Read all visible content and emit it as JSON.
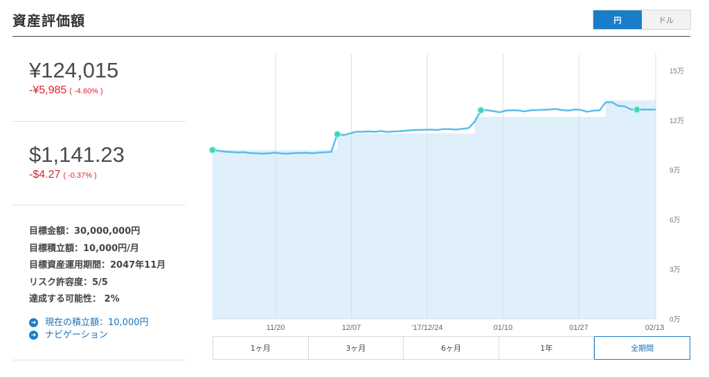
{
  "header": {
    "title": "資産評価額"
  },
  "currency_toggle": {
    "yen_label": "円",
    "dollar_label": "ドル",
    "active": "yen"
  },
  "summary": {
    "yen": {
      "value": "¥124,015",
      "change": "-¥5,985",
      "pct": "( -4.60% )"
    },
    "usd": {
      "value": "$1,141.23",
      "change": "-$4.27",
      "pct": "( -0.37% )"
    }
  },
  "goals": [
    "目標金額：30,000,000円",
    "目標積立額：10,000円/月",
    "目標資産運用期間：2047年11月",
    "リスク許容度：5/5",
    "達成する可能性： 2%"
  ],
  "links": {
    "current_contribution": "現在の積立額：10,000円",
    "navigation": "ナビゲーション",
    "arrow_icon": "arrow-right-circle-icon"
  },
  "range_tabs": [
    {
      "label": "1ヶ月",
      "active": false
    },
    {
      "label": "3ヶ月",
      "active": false
    },
    {
      "label": "6ヶ月",
      "active": false
    },
    {
      "label": "1年",
      "active": false
    },
    {
      "label": "全期間",
      "active": true
    }
  ],
  "colors": {
    "accent": "#1a7dc9",
    "line": "#5bbde8",
    "fill": "#dff0fb",
    "marker": "#3ed6b0",
    "negative": "#e0202c"
  },
  "chart_data": {
    "type": "area",
    "x_tick_labels": [
      "11/20",
      "12/07",
      "'17/12/24",
      "01/10",
      "01/27",
      "02/13"
    ],
    "y_tick_labels": [
      "0万",
      "3万",
      "6万",
      "9万",
      "12万",
      "15万"
    ],
    "ylim": [
      0,
      160000
    ],
    "grid": true,
    "series": [
      {
        "values": [
          102000,
          101500,
          101000,
          100800,
          100500,
          100700,
          100200,
          100000,
          99800,
          100000,
          100400,
          99900,
          99800,
          100100,
          100200,
          100300,
          100000,
          100400,
          100600,
          100900,
          111500,
          111000,
          112000,
          113000,
          113000,
          113200,
          113000,
          113400,
          112900,
          113200,
          113300,
          113700,
          114000,
          114100,
          114200,
          114300,
          114100,
          114600,
          114600,
          114300,
          114800,
          115200,
          119000,
          126000,
          126000,
          125500,
          124800,
          125800,
          126000,
          125900,
          125300,
          126000,
          126100,
          126300,
          126400,
          126800,
          126100,
          125800,
          126400,
          126200,
          125100,
          125800,
          125900,
          130800,
          130800,
          128700,
          128400,
          126600,
          126400,
          126500,
          126400,
          126400
        ],
        "contributions": [
          102000,
          102000,
          102000,
          102000,
          102000,
          102000,
          102000,
          102000,
          102000,
          102000,
          102000,
          102000,
          102000,
          102000,
          102000,
          102000,
          102000,
          102000,
          102000,
          102000,
          112000,
          112000,
          112000,
          112000,
          112000,
          112000,
          112000,
          112000,
          112000,
          112000,
          112000,
          112000,
          112000,
          112000,
          112000,
          112000,
          112000,
          112000,
          112000,
          112000,
          112000,
          112000,
          122000,
          122000,
          122000,
          122000,
          122000,
          122000,
          122000,
          122000,
          122000,
          122000,
          122000,
          122000,
          122000,
          122000,
          122000,
          122000,
          122000,
          122000,
          122000,
          122000,
          122000,
          132000,
          132000,
          132000,
          132000,
          132000,
          132000,
          132000,
          132000,
          132000
        ],
        "markers_at_index": [
          0,
          20,
          43,
          68
        ]
      }
    ]
  }
}
